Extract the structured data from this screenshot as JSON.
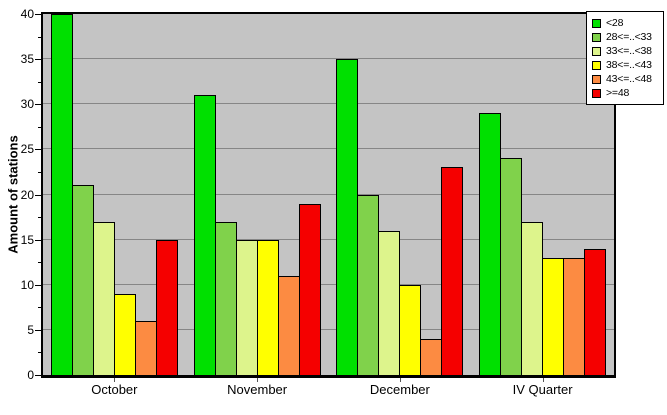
{
  "chart_data": {
    "type": "bar",
    "title": "",
    "xlabel": "",
    "ylabel": "Amount of stations",
    "categories": [
      "October",
      "November",
      "December",
      "IV Quarter"
    ],
    "series": [
      {
        "name": "<28",
        "color": "#00e000",
        "values": [
          40,
          31,
          35,
          29
        ]
      },
      {
        "name": "28<=..<33",
        "color": "#80d24b",
        "values": [
          21,
          17,
          20,
          24
        ]
      },
      {
        "name": "33<=..<38",
        "color": "#ddf48c",
        "values": [
          17,
          15,
          16,
          17
        ]
      },
      {
        "name": "38<=..<43",
        "color": "#ffff00",
        "values": [
          9,
          15,
          10,
          13
        ]
      },
      {
        "name": "43<=..<48",
        "color": "#fc8b42",
        "values": [
          6,
          11,
          4,
          13
        ]
      },
      {
        "name": ">=48",
        "color": "#f50000",
        "values": [
          15,
          19,
          23,
          14
        ]
      }
    ],
    "ylim": [
      0,
      40
    ],
    "ytick_step": 5,
    "ytick_minor_step": 2.5,
    "grid": "horizontal",
    "legend_position": "top-right",
    "plot_background": "#c4c4c4",
    "grid_color": "#868686"
  }
}
